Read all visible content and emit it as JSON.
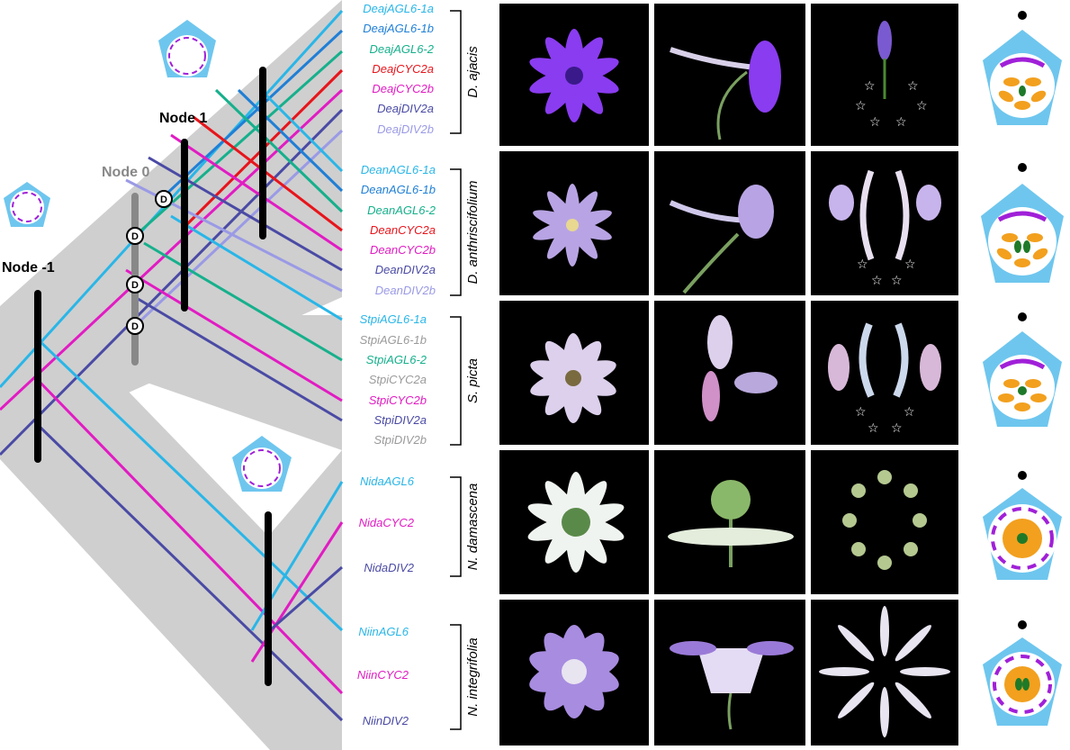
{
  "nodes": [
    {
      "id": "node-minus-1",
      "label": "Node -1"
    },
    {
      "id": "node-0",
      "label": "Node 0"
    },
    {
      "id": "node-1",
      "label": "Node 1"
    }
  ],
  "duplication_marker": "D",
  "colors": {
    "AGL6_1a": "#29b6e8",
    "AGL6_1b": "#1f7fd6",
    "AGL6_2": "#16b08c",
    "CYC2a": "#e8141b",
    "CYC2b": "#e21bc3",
    "DIV2a": "#4a4aa5",
    "DIV2b": "#9a9ae6",
    "lost": "#9a9a9a",
    "band": "#cfcfcf",
    "sepal": "#6ec6ee",
    "petal": "#a020d8",
    "stamen": "#f2a01e",
    "carpel": "#1e7a28"
  },
  "species": [
    {
      "name": "D. ajacis",
      "genes": [
        {
          "label": "DeajAGL6-1a",
          "color": "#29b6e8"
        },
        {
          "label": "DeajAGL6-1b",
          "color": "#1f7fd6"
        },
        {
          "label": "DeajAGL6-2",
          "color": "#16b08c"
        },
        {
          "label": "DeajCYC2a",
          "color": "#e8141b"
        },
        {
          "label": "DeajCYC2b",
          "color": "#e21bc3"
        },
        {
          "label": "DeajDIV2a",
          "color": "#4a4aa5"
        },
        {
          "label": "DeajDIV2b",
          "color": "#9a9ae6"
        }
      ]
    },
    {
      "name": "D. anthriscifolium",
      "genes": [
        {
          "label": "DeanAGL6-1a",
          "color": "#29b6e8"
        },
        {
          "label": "DeanAGL6-1b",
          "color": "#1f7fd6"
        },
        {
          "label": "DeanAGL6-2",
          "color": "#16b08c"
        },
        {
          "label": "DeanCYC2a",
          "color": "#e8141b"
        },
        {
          "label": "DeanCYC2b",
          "color": "#e21bc3"
        },
        {
          "label": "DeanDIV2a",
          "color": "#4a4aa5"
        },
        {
          "label": "DeanDIV2b",
          "color": "#9a9ae6"
        }
      ]
    },
    {
      "name": "S. picta",
      "genes": [
        {
          "label": "StpiAGL6-1a",
          "color": "#29b6e8"
        },
        {
          "label": "StpiAGL6-1b",
          "color": "#9a9a9a"
        },
        {
          "label": "StpiAGL6-2",
          "color": "#16b08c"
        },
        {
          "label": "StpiCYC2a",
          "color": "#9a9a9a"
        },
        {
          "label": "StpiCYC2b",
          "color": "#e21bc3"
        },
        {
          "label": "StpiDIV2a",
          "color": "#4a4aa5"
        },
        {
          "label": "StpiDIV2b",
          "color": "#9a9a9a"
        }
      ]
    },
    {
      "name": "N. damascena",
      "genes": [
        {
          "label": "NidaAGL6",
          "color": "#29b6e8"
        },
        {
          "label": "NidaCYC2",
          "color": "#e21bc3"
        },
        {
          "label": "NidaDIV2",
          "color": "#4a4aa5"
        }
      ]
    },
    {
      "name": "N. integrifolia",
      "genes": [
        {
          "label": "NiinAGL6",
          "color": "#29b6e8"
        },
        {
          "label": "NiinCYC2",
          "color": "#e21bc3"
        },
        {
          "label": "NiinDIV2",
          "color": "#4a4aa5"
        }
      ]
    }
  ]
}
